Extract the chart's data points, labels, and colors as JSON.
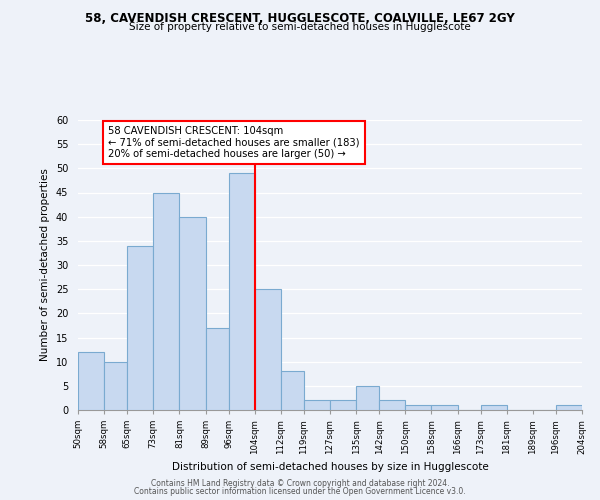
{
  "title1": "58, CAVENDISH CRESCENT, HUGGLESCOTE, COALVILLE, LE67 2GY",
  "title2": "Size of property relative to semi-detached houses in Hugglescote",
  "xlabel": "Distribution of semi-detached houses by size in Hugglescote",
  "ylabel": "Number of semi-detached properties",
  "bin_edges": [
    50,
    58,
    65,
    73,
    81,
    89,
    96,
    104,
    112,
    119,
    127,
    135,
    142,
    150,
    158,
    166,
    173,
    181,
    189,
    196,
    204
  ],
  "counts": [
    12,
    10,
    34,
    45,
    40,
    17,
    49,
    25,
    8,
    2,
    2,
    5,
    2,
    1,
    1,
    0,
    1,
    0,
    0,
    1
  ],
  "bar_color": "#c8d9f0",
  "bar_edge_color": "#7aaad0",
  "vline_x": 104,
  "vline_color": "red",
  "annotation_title": "58 CAVENDISH CRESCENT: 104sqm",
  "annotation_line1": "← 71% of semi-detached houses are smaller (183)",
  "annotation_line2": "20% of semi-detached houses are larger (50) →",
  "annotation_box_color": "white",
  "annotation_box_edge_color": "red",
  "ylim": [
    0,
    60
  ],
  "yticks": [
    0,
    5,
    10,
    15,
    20,
    25,
    30,
    35,
    40,
    45,
    50,
    55,
    60
  ],
  "tick_labels": [
    "50sqm",
    "58sqm",
    "65sqm",
    "73sqm",
    "81sqm",
    "89sqm",
    "96sqm",
    "104sqm",
    "112sqm",
    "119sqm",
    "127sqm",
    "135sqm",
    "142sqm",
    "150sqm",
    "158sqm",
    "166sqm",
    "173sqm",
    "181sqm",
    "189sqm",
    "196sqm",
    "204sqm"
  ],
  "footer1": "Contains HM Land Registry data © Crown copyright and database right 2024.",
  "footer2": "Contains public sector information licensed under the Open Government Licence v3.0.",
  "bg_color": "#eef2f9"
}
